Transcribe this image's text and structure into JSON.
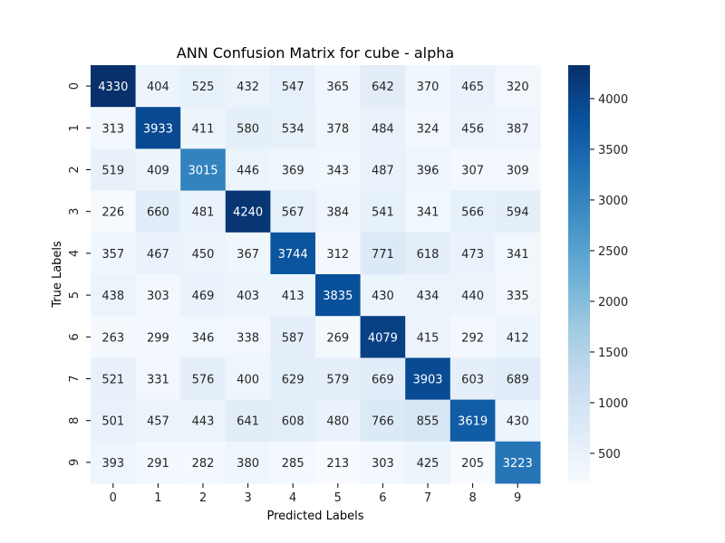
{
  "chart_data": {
    "type": "heatmap",
    "title": "ANN Confusion Matrix for cube - alpha",
    "xlabel": "Predicted Labels",
    "ylabel": "True Labels",
    "x_categories": [
      "0",
      "1",
      "2",
      "3",
      "4",
      "5",
      "6",
      "7",
      "8",
      "9"
    ],
    "y_categories": [
      "0",
      "1",
      "2",
      "3",
      "4",
      "5",
      "6",
      "7",
      "8",
      "9"
    ],
    "values": [
      [
        4330,
        404,
        525,
        432,
        547,
        365,
        642,
        370,
        465,
        320
      ],
      [
        313,
        3933,
        411,
        580,
        534,
        378,
        484,
        324,
        456,
        387
      ],
      [
        519,
        409,
        3015,
        446,
        369,
        343,
        487,
        396,
        307,
        309
      ],
      [
        226,
        660,
        481,
        4240,
        567,
        384,
        541,
        341,
        566,
        594
      ],
      [
        357,
        467,
        450,
        367,
        3744,
        312,
        771,
        618,
        473,
        341
      ],
      [
        438,
        303,
        469,
        403,
        413,
        3835,
        430,
        434,
        440,
        335
      ],
      [
        263,
        299,
        346,
        338,
        587,
        269,
        4079,
        415,
        292,
        412
      ],
      [
        521,
        331,
        576,
        400,
        629,
        579,
        669,
        3903,
        603,
        689
      ],
      [
        501,
        457,
        443,
        641,
        608,
        480,
        766,
        855,
        3619,
        430
      ],
      [
        393,
        291,
        282,
        380,
        285,
        213,
        303,
        425,
        205,
        3223
      ]
    ],
    "colormap": "Blues",
    "colorbar": {
      "ticks": [
        500,
        1000,
        1500,
        2000,
        2500,
        3000,
        3500,
        4000
      ],
      "tick_labels": [
        "500",
        "1000",
        "1500",
        "2000",
        "2500",
        "3000",
        "3500",
        "4000"
      ]
    },
    "annotate": true,
    "grid": false
  }
}
